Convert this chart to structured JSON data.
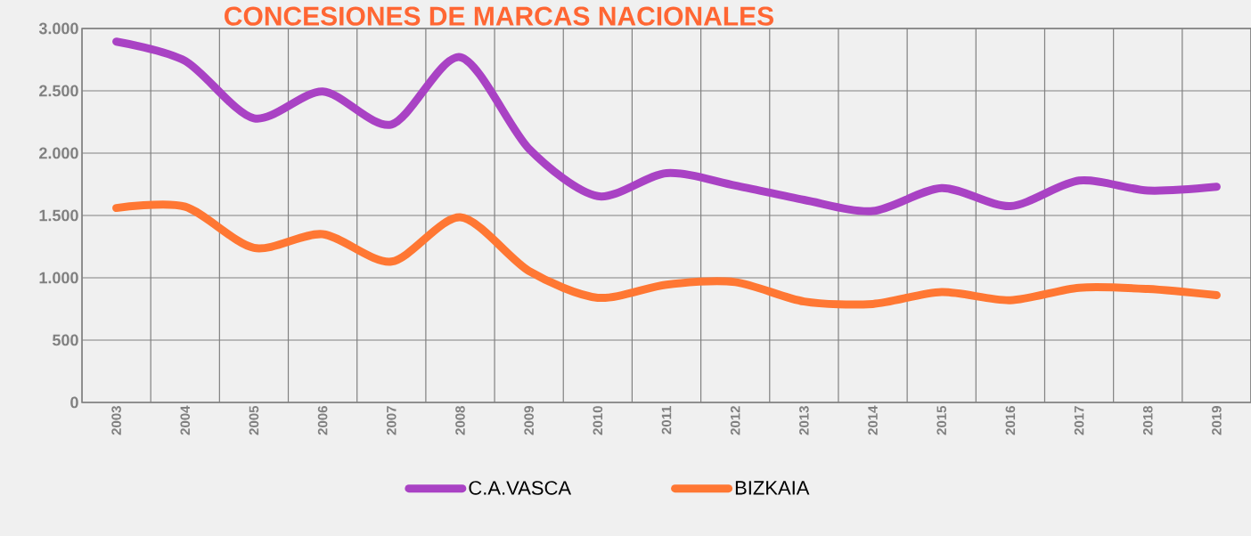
{
  "chart_data": {
    "type": "line",
    "title": "CONCESIONES DE MARCAS NACIONALES",
    "categories": [
      "2003",
      "2004",
      "2005",
      "2006",
      "2007",
      "2008",
      "2009",
      "2010",
      "2011",
      "2012",
      "2013",
      "2014",
      "2015",
      "2016",
      "2017",
      "2018",
      "2019"
    ],
    "series": [
      {
        "name": "C.A.VASCA",
        "color": "#a942c4",
        "values": [
          2895,
          2740,
          2280,
          2495,
          2230,
          2770,
          2035,
          1655,
          1840,
          1740,
          1625,
          1535,
          1720,
          1575,
          1780,
          1700,
          1730
        ]
      },
      {
        "name": "BIZKAIA",
        "color": "#ff7733",
        "values": [
          1560,
          1570,
          1240,
          1350,
          1130,
          1485,
          1055,
          840,
          945,
          965,
          810,
          790,
          885,
          820,
          920,
          910,
          860
        ]
      }
    ],
    "ylim": [
      0,
      3000
    ],
    "yticks": [
      {
        "value": 0,
        "label": "0"
      },
      {
        "value": 500,
        "label": "500"
      },
      {
        "value": 1000,
        "label": "1.000"
      },
      {
        "value": 1500,
        "label": "1.500"
      },
      {
        "value": 2000,
        "label": "2.000"
      },
      {
        "value": 2500,
        "label": "2.500"
      },
      {
        "value": 3000,
        "label": "3.000"
      }
    ],
    "grid": true,
    "legend": "bottom",
    "marker": "none",
    "line_style": "solid"
  }
}
